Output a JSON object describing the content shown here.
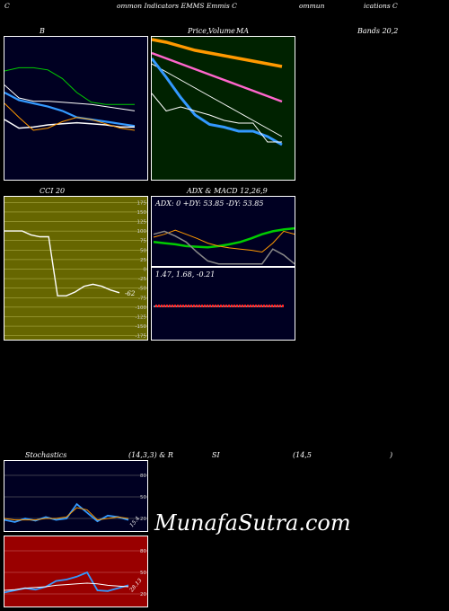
{
  "header": {
    "c1": "C",
    "c2": "ommon  Indicators EMMS Emmis C",
    "c3": "ommun",
    "c4": "ications C"
  },
  "titles": {
    "b": "B",
    "price1": "Price,",
    "price2": "Volume",
    "price3": "MA",
    "bands": "Bands 20,2",
    "cci": "CCI 20",
    "adx": "ADX  & MACD 12,26,9",
    "stoch1": "Stochastics",
    "stoch2": "(14,3,3) & R",
    "stoch3": "SI",
    "stoch4": "(14,5",
    "stoch5": ")"
  },
  "watermark": "MunafaSutra.com",
  "colors": {
    "navy": "#000022",
    "dark_green": "#002200",
    "olive": "#666600",
    "dark_red": "#990000",
    "green_line": "#00cc00",
    "blue": "#3399ff",
    "orange": "#ff9900",
    "white": "#ffffff"
  },
  "chart_data": [
    {
      "id": "bollinger",
      "type": "line",
      "series": [
        {
          "color": "#00cc00",
          "values": [
            85,
            88,
            88,
            86,
            78,
            65,
            56,
            54,
            54,
            54
          ]
        },
        {
          "color": "#ffffff",
          "values": [
            72,
            60,
            57,
            57,
            56,
            55,
            54,
            52,
            50,
            48
          ]
        },
        {
          "color": "#3399ff",
          "values": [
            65,
            58,
            55,
            52,
            48,
            42,
            40,
            38,
            36,
            34
          ]
        },
        {
          "color": "#ffffff",
          "values": [
            40,
            32,
            33,
            35,
            36,
            37,
            36,
            35,
            33,
            33
          ]
        },
        {
          "color": "#ff9900",
          "values": [
            55,
            42,
            30,
            32,
            38,
            42,
            40,
            36,
            32,
            30
          ]
        }
      ]
    },
    {
      "id": "price_ma",
      "type": "line",
      "series": [
        {
          "color": "#ff9900",
          "values": [
            98,
            96,
            93,
            90,
            88,
            86,
            84,
            82,
            80,
            78
          ]
        },
        {
          "color": "#ff66cc",
          "values": [
            88,
            84,
            80,
            76,
            72,
            68,
            64,
            60,
            56,
            52
          ]
        },
        {
          "color": "#ffffff",
          "values": [
            80,
            74,
            68,
            62,
            56,
            50,
            44,
            38,
            32,
            26
          ]
        },
        {
          "color": "#3399ff",
          "values": [
            84,
            70,
            55,
            42,
            35,
            33,
            30,
            30,
            26,
            20
          ]
        },
        {
          "color": "#ffffff",
          "values": [
            58,
            45,
            48,
            45,
            42,
            38,
            36,
            36,
            22,
            22
          ]
        }
      ]
    },
    {
      "id": "cci",
      "type": "line",
      "yticks": [
        175,
        150,
        125,
        100,
        75,
        50,
        25,
        0,
        -25,
        -50,
        -75,
        -100,
        -125,
        -150,
        -175
      ],
      "ylim": [
        -190,
        190
      ],
      "annotation": "-62",
      "series": [
        {
          "color": "#ffffff",
          "values": [
            100,
            100,
            100,
            90,
            85,
            85,
            -70,
            -70,
            -60,
            -45,
            -40,
            -45,
            -55,
            -62
          ]
        }
      ]
    },
    {
      "id": "adx",
      "type": "line",
      "adx_text": "ADX: 0  +DY: 53.85 -DY: 53.85",
      "series": [
        {
          "color": "#00cc00",
          "values": [
            42,
            40,
            38,
            35,
            34,
            33,
            35,
            38,
            42,
            48,
            55,
            60,
            63,
            65
          ]
        },
        {
          "color": "#ff9900",
          "values": [
            50,
            55,
            62,
            55,
            48,
            40,
            35,
            32,
            30,
            28,
            25,
            40,
            60,
            55
          ]
        },
        {
          "color": "#888888",
          "values": [
            55,
            60,
            52,
            42,
            25,
            10,
            5,
            5,
            5,
            5,
            5,
            30,
            20,
            5
          ]
        }
      ]
    },
    {
      "id": "macd",
      "type": "bar",
      "macd_text": "1.47,  1.68,  -0.21"
    },
    {
      "id": "stochastics",
      "type": "line",
      "yticks": [
        80,
        50,
        20
      ],
      "annotation": "15.4",
      "series": [
        {
          "color": "#3399ff",
          "values": [
            18,
            15,
            20,
            17,
            22,
            18,
            20,
            40,
            28,
            16,
            24,
            22,
            18
          ]
        },
        {
          "color": "#ff9900",
          "values": [
            20,
            18,
            18,
            18,
            20,
            20,
            22,
            35,
            32,
            18,
            20,
            22,
            20
          ]
        }
      ]
    },
    {
      "id": "rsi",
      "type": "line",
      "yticks": [
        80,
        50,
        20
      ],
      "annotation": "28.13",
      "series": [
        {
          "color": "#3399ff",
          "values": [
            22,
            25,
            28,
            26,
            30,
            38,
            40,
            44,
            50,
            25,
            24,
            28,
            32
          ]
        },
        {
          "color": "#ffffff",
          "values": [
            25,
            26,
            28,
            29,
            30,
            32,
            33,
            34,
            35,
            34,
            32,
            31,
            30
          ]
        }
      ]
    }
  ]
}
